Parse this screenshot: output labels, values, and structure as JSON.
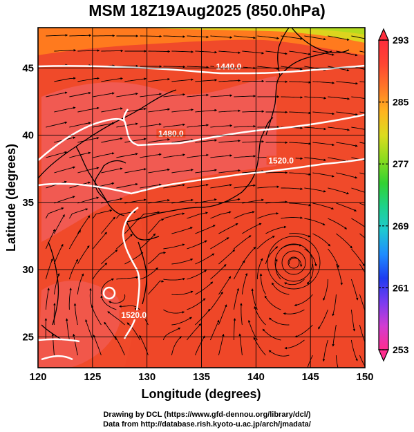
{
  "title": "MSM 18Z19Aug2025 (850.0hPa)",
  "map": {
    "xlabel": "Longitude (degrees)",
    "ylabel": "Latitude  (degrees)",
    "lon_range": [
      120,
      150
    ],
    "lat_range": [
      22.7,
      48
    ],
    "lon_ticks": [
      120,
      125,
      130,
      135,
      140,
      145,
      150
    ],
    "lat_ticks": [
      25,
      30,
      35,
      40,
      45
    ],
    "grid": true,
    "field": "temperature",
    "contour_labels": [
      {
        "text": "1440.0",
        "lon": 137.5,
        "lat": 45.0
      },
      {
        "text": "1480.0",
        "lon": 132.2,
        "lat": 40.0
      },
      {
        "text": "1520.0",
        "lon": 142.3,
        "lat": 38.0
      },
      {
        "text": "1520.0",
        "lon": 128.8,
        "lat": 26.5
      }
    ]
  },
  "colorbar": {
    "min": 253,
    "max": 293,
    "labels": [
      "293",
      "285",
      "277",
      "269",
      "261",
      "253"
    ],
    "colors": [
      "#ff2d8e",
      "#d23cd2",
      "#7a3cf0",
      "#1e3cf0",
      "#1e8cff",
      "#1ec8d2",
      "#1ed28c",
      "#32d232",
      "#8cdc1e",
      "#dcdc1e",
      "#ffb41e",
      "#ff7828",
      "#ff4632",
      "#ff2d3c"
    ]
  },
  "credit": {
    "line1": "Drawing by DCL (https://www.gfd-dennou.org/library/dcl/)",
    "line2": "Data from http://database.rish.kyoto-u.ac.jp/arch/jmadata/"
  }
}
